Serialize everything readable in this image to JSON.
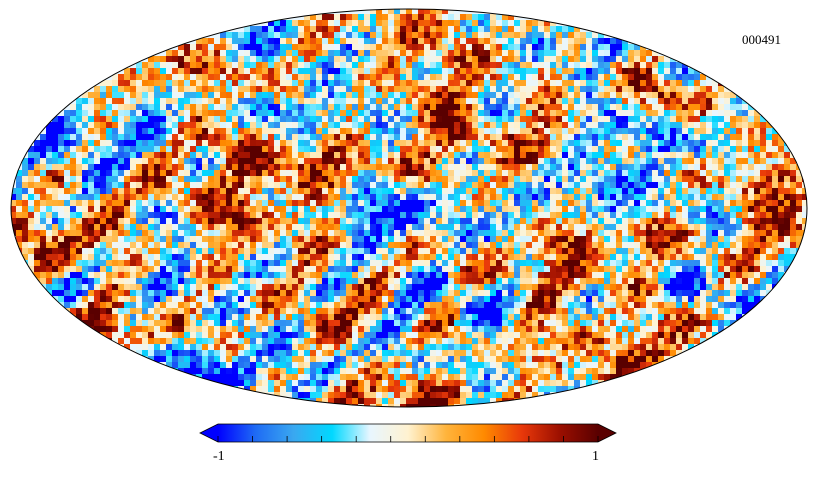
{
  "map": {
    "label": "000491",
    "projection": "mollweide",
    "pattern_seed": 491
  },
  "colorbar": {
    "min_label": "-1",
    "max_label": "1",
    "range": [
      -1,
      1
    ],
    "tick_count": 12,
    "extend": "both",
    "colors": [
      "#0000ff",
      "#1f6cf4",
      "#3aa8f0",
      "#00d8ff",
      "#e8f6ff",
      "#fff2d0",
      "#ffb43c",
      "#ff8a00",
      "#e8380a",
      "#9b0f00",
      "#5a0000"
    ]
  }
}
